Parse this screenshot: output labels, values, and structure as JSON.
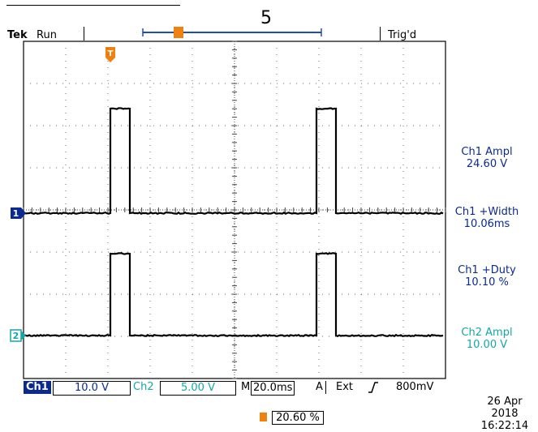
{
  "figure_label": "5",
  "header": {
    "brand": "Tek",
    "state": "Run",
    "trigger_status": "Trig'd"
  },
  "markers": {
    "trigger_marker": "T",
    "ch1_marker": "1",
    "ch2_marker": "2"
  },
  "measurements": [
    {
      "label": "Ch1 Ampl",
      "value": "24.60 V",
      "channel": "ch1"
    },
    {
      "label": "Ch1 +Width",
      "value": "10.06ms",
      "channel": "ch1"
    },
    {
      "label": "Ch1 +Duty",
      "value": "10.10 %",
      "channel": "ch1"
    },
    {
      "label": "Ch2 Ampl",
      "value": "10.00 V",
      "channel": "ch2"
    }
  ],
  "settings_bar": {
    "ch1_name": "Ch1",
    "ch1_scale": "10.0 V",
    "ch2_name": "Ch2",
    "ch2_scale": "5.00 V",
    "timebase_prefix": "M",
    "timebase": "20.0ms",
    "trigger_mode": "A",
    "trigger_source": "Ext",
    "trigger_level": "800mV"
  },
  "footer": {
    "date": "26 Apr 2018",
    "time": "16:22:14",
    "trigger_position": "20.60 %"
  },
  "colors": {
    "ch1": "#0a2a90",
    "ch2": "#13a7a7",
    "trigger": "#f08010",
    "record_bar": "#1f4fb0"
  }
}
